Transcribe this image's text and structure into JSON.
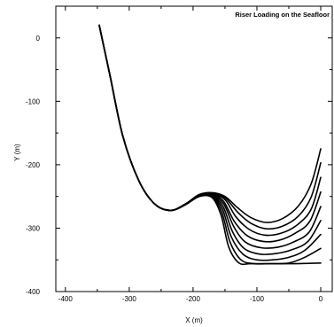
{
  "chart_data": {
    "type": "line",
    "title": "Riser Loading on the Seafloor",
    "xlabel": "X (m)",
    "ylabel": "Y (m)",
    "xlim": [
      -415,
      18
    ],
    "ylim": [
      -400,
      50
    ],
    "x_ticks": [
      -400,
      -300,
      -200,
      -100,
      0
    ],
    "y_ticks": [
      0,
      -100,
      -200,
      -300,
      -400
    ],
    "grid": false,
    "series": [
      {
        "points": [
          [
            -347,
            20
          ],
          [
            -330,
            -60
          ],
          [
            -310,
            -155
          ],
          [
            -285,
            -225
          ],
          [
            -260,
            -262
          ],
          [
            -235,
            -272
          ],
          [
            -212,
            -262
          ],
          [
            -190,
            -247
          ],
          [
            -170,
            -244
          ],
          [
            -150,
            -250
          ],
          [
            -130,
            -268
          ],
          [
            -110,
            -283
          ],
          [
            -85,
            -291
          ],
          [
            -60,
            -285
          ],
          [
            -35,
            -265
          ],
          [
            -15,
            -230
          ],
          [
            0,
            -175
          ]
        ]
      },
      {
        "points": [
          [
            -347,
            20
          ],
          [
            -330,
            -60
          ],
          [
            -310,
            -155
          ],
          [
            -285,
            -225
          ],
          [
            -260,
            -262
          ],
          [
            -235,
            -272
          ],
          [
            -212,
            -262
          ],
          [
            -190,
            -247
          ],
          [
            -170,
            -245
          ],
          [
            -150,
            -252
          ],
          [
            -130,
            -275
          ],
          [
            -110,
            -292
          ],
          [
            -85,
            -301
          ],
          [
            -60,
            -297
          ],
          [
            -35,
            -281
          ],
          [
            -15,
            -251
          ],
          [
            0,
            -197
          ]
        ]
      },
      {
        "points": [
          [
            -347,
            20
          ],
          [
            -330,
            -60
          ],
          [
            -310,
            -155
          ],
          [
            -285,
            -225
          ],
          [
            -260,
            -262
          ],
          [
            -235,
            -272
          ],
          [
            -212,
            -262
          ],
          [
            -190,
            -247
          ],
          [
            -170,
            -246
          ],
          [
            -150,
            -255
          ],
          [
            -133,
            -282
          ],
          [
            -112,
            -302
          ],
          [
            -88,
            -311
          ],
          [
            -62,
            -308
          ],
          [
            -37,
            -295
          ],
          [
            -15,
            -270
          ],
          [
            0,
            -220
          ]
        ]
      },
      {
        "points": [
          [
            -347,
            20
          ],
          [
            -330,
            -60
          ],
          [
            -310,
            -155
          ],
          [
            -285,
            -225
          ],
          [
            -260,
            -262
          ],
          [
            -235,
            -272
          ],
          [
            -212,
            -262
          ],
          [
            -190,
            -248
          ],
          [
            -170,
            -247
          ],
          [
            -152,
            -258
          ],
          [
            -135,
            -290
          ],
          [
            -115,
            -312
          ],
          [
            -90,
            -321
          ],
          [
            -65,
            -319
          ],
          [
            -40,
            -308
          ],
          [
            -17,
            -289
          ],
          [
            0,
            -243
          ]
        ]
      },
      {
        "points": [
          [
            -347,
            20
          ],
          [
            -330,
            -60
          ],
          [
            -310,
            -155
          ],
          [
            -285,
            -225
          ],
          [
            -260,
            -262
          ],
          [
            -235,
            -272
          ],
          [
            -212,
            -262
          ],
          [
            -190,
            -248
          ],
          [
            -170,
            -248
          ],
          [
            -152,
            -262
          ],
          [
            -136,
            -298
          ],
          [
            -118,
            -322
          ],
          [
            -93,
            -331
          ],
          [
            -67,
            -330
          ],
          [
            -43,
            -322
          ],
          [
            -18,
            -306
          ],
          [
            0,
            -266
          ]
        ]
      },
      {
        "points": [
          [
            -347,
            20
          ],
          [
            -330,
            -60
          ],
          [
            -310,
            -155
          ],
          [
            -285,
            -225
          ],
          [
            -260,
            -262
          ],
          [
            -235,
            -272
          ],
          [
            -212,
            -263
          ],
          [
            -190,
            -249
          ],
          [
            -170,
            -249
          ],
          [
            -153,
            -266
          ],
          [
            -138,
            -306
          ],
          [
            -120,
            -332
          ],
          [
            -95,
            -341
          ],
          [
            -70,
            -340
          ],
          [
            -45,
            -334
          ],
          [
            -20,
            -321
          ],
          [
            0,
            -288
          ]
        ]
      },
      {
        "points": [
          [
            -347,
            20
          ],
          [
            -330,
            -60
          ],
          [
            -310,
            -155
          ],
          [
            -285,
            -225
          ],
          [
            -260,
            -262
          ],
          [
            -235,
            -272
          ],
          [
            -212,
            -263
          ],
          [
            -190,
            -249
          ],
          [
            -170,
            -250
          ],
          [
            -154,
            -270
          ],
          [
            -140,
            -314
          ],
          [
            -122,
            -341
          ],
          [
            -100,
            -350
          ],
          [
            -75,
            -350
          ],
          [
            -50,
            -346
          ],
          [
            -25,
            -335
          ],
          [
            0,
            -310
          ]
        ]
      },
      {
        "points": [
          [
            -347,
            20
          ],
          [
            -330,
            -60
          ],
          [
            -310,
            -155
          ],
          [
            -285,
            -225
          ],
          [
            -260,
            -262
          ],
          [
            -235,
            -272
          ],
          [
            -212,
            -263
          ],
          [
            -190,
            -249
          ],
          [
            -170,
            -251
          ],
          [
            -155,
            -275
          ],
          [
            -142,
            -322
          ],
          [
            -125,
            -350
          ],
          [
            -105,
            -356
          ],
          [
            -80,
            -356
          ],
          [
            -50,
            -355
          ],
          [
            -25,
            -346
          ],
          [
            0,
            -332
          ]
        ]
      },
      {
        "points": [
          [
            -347,
            20
          ],
          [
            -330,
            -60
          ],
          [
            -310,
            -155
          ],
          [
            -285,
            -225
          ],
          [
            -260,
            -262
          ],
          [
            -235,
            -272
          ],
          [
            -212,
            -263
          ],
          [
            -190,
            -250
          ],
          [
            -170,
            -252
          ],
          [
            -156,
            -280
          ],
          [
            -144,
            -330
          ],
          [
            -128,
            -355
          ],
          [
            -110,
            -356
          ],
          [
            -80,
            -356
          ],
          [
            -40,
            -356
          ],
          [
            0,
            -355
          ]
        ]
      }
    ]
  }
}
